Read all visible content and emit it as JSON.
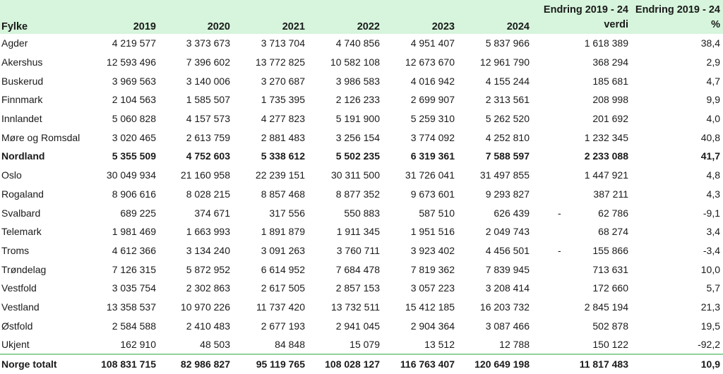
{
  "headers": {
    "fylke": "Fylke",
    "y2019": "2019",
    "y2020": "2020",
    "y2021": "2021",
    "y2022": "2022",
    "y2023": "2023",
    "y2024": "2024",
    "endring_verdi_1": "Endring 2019 - 24",
    "endring_verdi_2": "verdi",
    "endring_pct_1": "Endring 2019 - 24",
    "endring_pct_2": "%"
  },
  "rows": [
    {
      "fylke": "Agder",
      "y2019": "4 219 577",
      "y2020": "3 373 673",
      "y2021": "3 713 704",
      "y2022": "4 740 856",
      "y2023": "4 951 407",
      "y2024": "5 837 966",
      "minus": "",
      "verdi": "1 618 389",
      "pct": "38,4"
    },
    {
      "fylke": "Akershus",
      "y2019": "12 593 496",
      "y2020": "7 396 602",
      "y2021": "13 772 825",
      "y2022": "10 582 108",
      "y2023": "12 673 670",
      "y2024": "12 961 790",
      "minus": "",
      "verdi": "368 294",
      "pct": "2,9"
    },
    {
      "fylke": "Buskerud",
      "y2019": "3 969 563",
      "y2020": "3 140 006",
      "y2021": "3 270 687",
      "y2022": "3 986 583",
      "y2023": "4 016 942",
      "y2024": "4 155 244",
      "minus": "",
      "verdi": "185 681",
      "pct": "4,7"
    },
    {
      "fylke": "Finnmark",
      "y2019": "2 104 563",
      "y2020": "1 585 507",
      "y2021": "1 735 395",
      "y2022": "2 126 233",
      "y2023": "2 699 907",
      "y2024": "2 313 561",
      "minus": "",
      "verdi": "208 998",
      "pct": "9,9"
    },
    {
      "fylke": "Innlandet",
      "y2019": "5 060 828",
      "y2020": "4 157 573",
      "y2021": "4 277 823",
      "y2022": "5 191 900",
      "y2023": "5 259 310",
      "y2024": "5 262 520",
      "minus": "",
      "verdi": "201 692",
      "pct": "4,0"
    },
    {
      "fylke": "Møre og Romsdal",
      "y2019": "3 020 465",
      "y2020": "2 613 759",
      "y2021": "2 881 483",
      "y2022": "3 256 154",
      "y2023": "3 774 092",
      "y2024": "4 252 810",
      "minus": "",
      "verdi": "1 232 345",
      "pct": "40,8"
    },
    {
      "fylke": "Nordland",
      "y2019": "5 355 509",
      "y2020": "4 752 603",
      "y2021": "5 338 612",
      "y2022": "5 502 235",
      "y2023": "6 319 361",
      "y2024": "7 588 597",
      "minus": "",
      "verdi": "2 233 088",
      "pct": "41,7",
      "bold": true
    },
    {
      "fylke": "Oslo",
      "y2019": "30 049 934",
      "y2020": "21 160 958",
      "y2021": "22 239 151",
      "y2022": "30 311 500",
      "y2023": "31 726 041",
      "y2024": "31 497 855",
      "minus": "",
      "verdi": "1 447 921",
      "pct": "4,8"
    },
    {
      "fylke": "Rogaland",
      "y2019": "8 906 616",
      "y2020": "8 028 215",
      "y2021": "8 857 468",
      "y2022": "8 877 352",
      "y2023": "9 673 601",
      "y2024": "9 293 827",
      "minus": "",
      "verdi": "387 211",
      "pct": "4,3"
    },
    {
      "fylke": "Svalbard",
      "y2019": "689 225",
      "y2020": "374 671",
      "y2021": "317 556",
      "y2022": "550 883",
      "y2023": "587 510",
      "y2024": "626 439",
      "minus": "-",
      "verdi": "62 786",
      "pct": "-9,1"
    },
    {
      "fylke": "Telemark",
      "y2019": "1 981 469",
      "y2020": "1 663 993",
      "y2021": "1 891 879",
      "y2022": "1 911 345",
      "y2023": "1 951 516",
      "y2024": "2 049 743",
      "minus": "",
      "verdi": "68 274",
      "pct": "3,4"
    },
    {
      "fylke": "Troms",
      "y2019": "4 612 366",
      "y2020": "3 134 240",
      "y2021": "3 091 263",
      "y2022": "3 760 711",
      "y2023": "3 923 402",
      "y2024": "4 456 501",
      "minus": "-",
      "verdi": "155 866",
      "pct": "-3,4"
    },
    {
      "fylke": "Trøndelag",
      "y2019": "7 126 315",
      "y2020": "5 872 952",
      "y2021": "6 614 952",
      "y2022": "7 684 478",
      "y2023": "7 819 362",
      "y2024": "7 839 945",
      "minus": "",
      "verdi": "713 631",
      "pct": "10,0"
    },
    {
      "fylke": "Vestfold",
      "y2019": "3 035 754",
      "y2020": "2 302 863",
      "y2021": "2 617 505",
      "y2022": "2 857 153",
      "y2023": "3 057 223",
      "y2024": "3 208 414",
      "minus": "",
      "verdi": "172 660",
      "pct": "5,7"
    },
    {
      "fylke": "Vestland",
      "y2019": "13 358 537",
      "y2020": "10 970 226",
      "y2021": "11 737 420",
      "y2022": "13 732 511",
      "y2023": "15 412 185",
      "y2024": "16 203 732",
      "minus": "",
      "verdi": "2 845 194",
      "pct": "21,3"
    },
    {
      "fylke": "Østfold",
      "y2019": "2 584 588",
      "y2020": "2 410 483",
      "y2021": "2 677 193",
      "y2022": "2 941 045",
      "y2023": "2 904 364",
      "y2024": "3 087 466",
      "minus": "",
      "verdi": "502 878",
      "pct": "19,5"
    },
    {
      "fylke": "Ukjent",
      "y2019": "162 910",
      "y2020": "48 503",
      "y2021": "84 848",
      "y2022": "15 079",
      "y2023": "13 512",
      "y2024": "12 788",
      "minus": "",
      "verdi": "150 122",
      "pct": "-92,2"
    }
  ],
  "total": {
    "fylke": "Norge totalt",
    "y2019": "108 831 715",
    "y2020": "82 986 827",
    "y2021": "95 119 765",
    "y2022": "108 028 127",
    "y2023": "116 763 407",
    "y2024": "120 649 198",
    "verdi": "11 817 483",
    "pct": "10,9"
  },
  "colors": {
    "header_bg": "#d6f5dc",
    "total_rule": "#8fd39a"
  }
}
